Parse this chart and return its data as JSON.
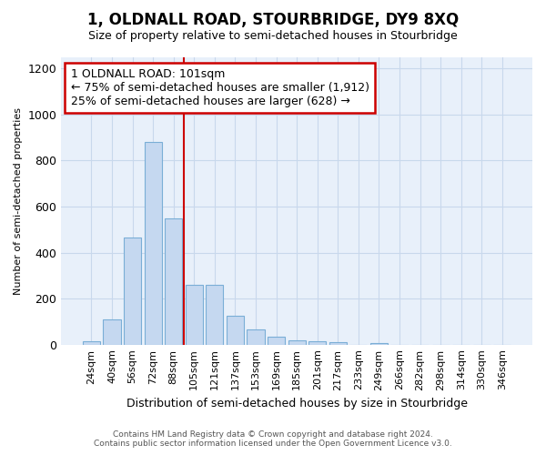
{
  "title": "1, OLDNALL ROAD, STOURBRIDGE, DY9 8XQ",
  "subtitle": "Size of property relative to semi-detached houses in Stourbridge",
  "xlabel": "Distribution of semi-detached houses by size in Stourbridge",
  "ylabel": "Number of semi-detached properties",
  "footer_line1": "Contains HM Land Registry data © Crown copyright and database right 2024.",
  "footer_line2": "Contains public sector information licensed under the Open Government Licence v3.0.",
  "annotation_line1": "1 OLDNALL ROAD: 101sqm",
  "annotation_line2": "← 75% of semi-detached houses are smaller (1,912)",
  "annotation_line3": "25% of semi-detached houses are larger (628) →",
  "categories": [
    "24sqm",
    "40sqm",
    "56sqm",
    "72sqm",
    "88sqm",
    "105sqm",
    "121sqm",
    "137sqm",
    "153sqm",
    "169sqm",
    "185sqm",
    "201sqm",
    "217sqm",
    "233sqm",
    "249sqm",
    "266sqm",
    "282sqm",
    "298sqm",
    "314sqm",
    "330sqm",
    "346sqm"
  ],
  "values": [
    15,
    110,
    465,
    880,
    550,
    260,
    260,
    125,
    65,
    35,
    20,
    15,
    10,
    0,
    5,
    0,
    0,
    0,
    0,
    0,
    0
  ],
  "bar_color": "#c5d8f0",
  "bar_edge_color": "#7aaed6",
  "vline_color": "#cc0000",
  "vline_position": 4.5,
  "ylim": [
    0,
    1250
  ],
  "yticks": [
    0,
    200,
    400,
    600,
    800,
    1000,
    1200
  ],
  "grid_color": "#c8d8ec",
  "background_color": "#e8f0fa",
  "annotation_box_color": "#ffffff",
  "annotation_box_edge": "#cc0000",
  "title_fontsize": 12,
  "subtitle_fontsize": 9,
  "xlabel_fontsize": 9,
  "ylabel_fontsize": 8,
  "tick_fontsize": 8,
  "footer_fontsize": 6.5,
  "annotation_fontsize": 9
}
